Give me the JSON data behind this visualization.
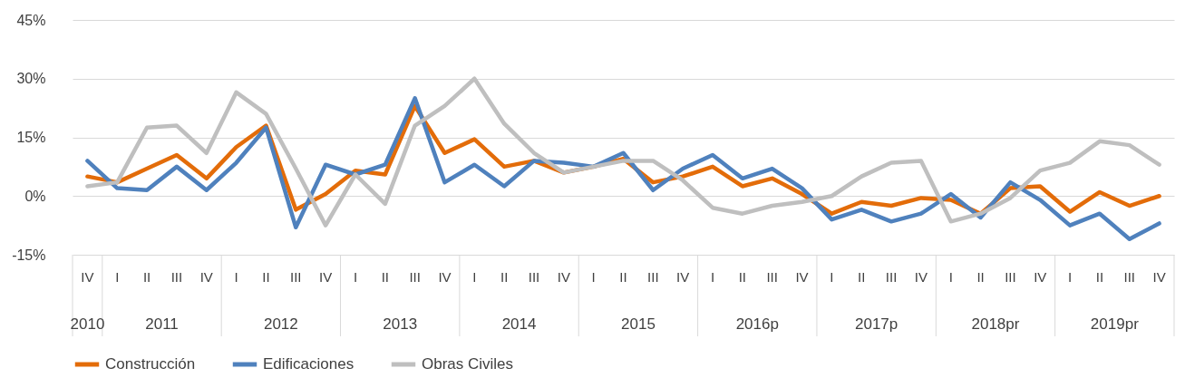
{
  "chart_data": {
    "type": "line",
    "categories": [
      "IV",
      "I",
      "II",
      "III",
      "IV",
      "I",
      "II",
      "III",
      "IV",
      "I",
      "II",
      "III",
      "IV",
      "I",
      "II",
      "III",
      "IV",
      "I",
      "II",
      "III",
      "IV",
      "I",
      "II",
      "III",
      "IV",
      "I",
      "II",
      "III",
      "IV",
      "I",
      "II",
      "III",
      "IV",
      "I",
      "II",
      "III",
      "IV"
    ],
    "annotations": [
      "2010",
      "2011",
      "2012",
      "2013",
      "2014",
      "2015",
      "2016p",
      "2017p",
      "2018pr",
      "2019pr"
    ],
    "ylim": [
      -15,
      45
    ],
    "yticks": [
      {
        "value": -15,
        "label": "-15%"
      },
      {
        "value": 0,
        "label": "0%"
      },
      {
        "value": 15,
        "label": "15%"
      },
      {
        "value": 30,
        "label": "30%"
      },
      {
        "value": 45,
        "label": "45%"
      }
    ],
    "grid": "y",
    "legend": "bottom",
    "line_style": "solid",
    "marker": "none",
    "series": [
      {
        "name": "Construcción",
        "color": "#e36c09",
        "values": [
          5,
          3.5,
          7,
          10.5,
          4.5,
          12.5,
          18,
          -3.5,
          0.5,
          6.5,
          5.5,
          23,
          11,
          14.5,
          7.5,
          9,
          6,
          7.5,
          9.5,
          3.5,
          5,
          7.5,
          2.5,
          4.5,
          0.5,
          -4.5,
          -1.5,
          -2.5,
          -0.5,
          -1,
          -4.5,
          2,
          2.5,
          -4,
          1,
          -2.5,
          0
        ]
      },
      {
        "name": "Edificaciones",
        "color": "#4f81bd",
        "values": [
          9,
          2,
          1.5,
          7.5,
          1.5,
          8.5,
          17.5,
          -8,
          8,
          5.5,
          8,
          25,
          3.5,
          8,
          2.5,
          9,
          8.5,
          7.5,
          11,
          1.5,
          7,
          10.5,
          4.5,
          7,
          2,
          -6,
          -3.5,
          -6.5,
          -4.5,
          0.5,
          -5.5,
          3.5,
          -1,
          -7.5,
          -4.5,
          -11,
          -7
        ]
      },
      {
        "name": "Obras Civiles",
        "color": "#bfbfbf",
        "values": [
          2.5,
          3.5,
          17.5,
          18,
          11,
          26.5,
          21,
          7,
          -7.5,
          5.5,
          -2,
          18,
          23,
          30,
          18.5,
          11,
          6,
          7.5,
          9,
          9,
          4,
          -3,
          -4.5,
          -2.5,
          -1.5,
          0,
          5,
          8.5,
          9,
          -6.5,
          -4.5,
          -0.5,
          6.5,
          8.5,
          14,
          13,
          8
        ]
      }
    ]
  }
}
